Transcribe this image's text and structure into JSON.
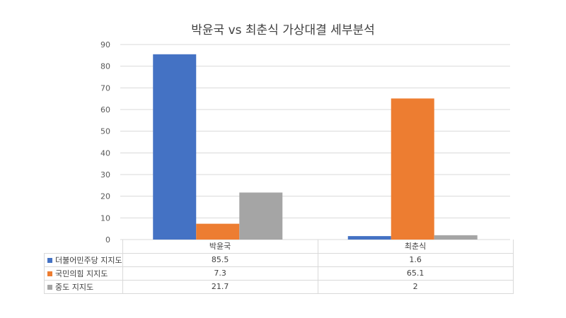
{
  "chart_data": {
    "type": "bar",
    "title": "박윤국 vs 최춘식 가상대결 세부분석",
    "categories": [
      "박윤국",
      "최춘식"
    ],
    "series": [
      {
        "name": "더불어민주당 지지도",
        "values": [
          85.5,
          1.6
        ],
        "color": "#4472c4"
      },
      {
        "name": "국민의힘 지지도",
        "values": [
          7.3,
          65.1
        ],
        "color": "#ed7d31"
      },
      {
        "name": "중도 지지도",
        "values": [
          21.7,
          2
        ],
        "color": "#a5a5a5"
      }
    ],
    "ylim": [
      0,
      90
    ],
    "yticks": [
      0,
      10,
      20,
      30,
      40,
      50,
      60,
      70,
      80,
      90
    ],
    "grid": true,
    "legend": "data-table"
  },
  "table": {
    "rows": [
      {
        "label": "더불어민주당 지지도",
        "values": [
          "85.5",
          "1.6"
        ],
        "color": "#4472c4"
      },
      {
        "label": "국민의힘 지지도",
        "values": [
          "7.3",
          "65.1"
        ],
        "color": "#ed7d31"
      },
      {
        "label": "중도 지지도",
        "values": [
          "21.7",
          "2"
        ],
        "color": "#a5a5a5"
      }
    ]
  }
}
